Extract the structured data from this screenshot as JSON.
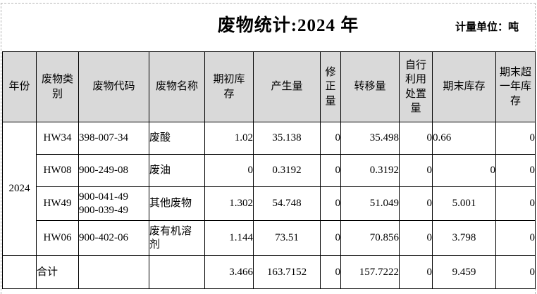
{
  "page": {
    "title": "废物统计:2024 年",
    "unit_label": "计量单位：吨"
  },
  "table": {
    "columns": [
      {
        "key": "year",
        "label": "年份"
      },
      {
        "key": "category",
        "label": "废物类\n别"
      },
      {
        "key": "code",
        "label": "废物代码"
      },
      {
        "key": "name",
        "label": "废物名称"
      },
      {
        "key": "opening",
        "label": "期初库\n存"
      },
      {
        "key": "generated",
        "label": "产生量"
      },
      {
        "key": "corrected",
        "label": "修\n正\n量"
      },
      {
        "key": "transferred",
        "label": "转移量"
      },
      {
        "key": "self_disposed",
        "label": "自行\n利用\n处置\n量"
      },
      {
        "key": "closing",
        "label": "期末库存"
      },
      {
        "key": "closing_over_year",
        "label": "期末超\n一年库\n存"
      }
    ],
    "year": "2024",
    "rows": [
      {
        "category": "HW34",
        "code": "398-007-34",
        "name": "废酸",
        "opening": "1.02",
        "generated": "35.138",
        "corrected": "0",
        "transferred": "35.498",
        "self_disposed": "0",
        "closing": "0.66",
        "closing_align": "left",
        "closing_over_year": "0"
      },
      {
        "category": "HW08",
        "code": "900-249-08",
        "name": "废油",
        "opening": "0",
        "generated": "0.3192",
        "corrected": "0",
        "transferred": "0.3192",
        "self_disposed": "0",
        "closing": "0",
        "closing_align": "right",
        "closing_over_year": "0"
      },
      {
        "category": "HW49",
        "code": "900-041-49\n900-039-49",
        "name": "其他废物",
        "opening": "1.302",
        "generated": "54.748",
        "corrected": "0",
        "transferred": "51.049",
        "self_disposed": "0",
        "closing": "5.001",
        "closing_align": "center",
        "closing_over_year": "0"
      },
      {
        "category": "HW06",
        "code": "900-402-06",
        "name": "废有机溶\n剂",
        "opening": "1.144",
        "generated": "73.51",
        "corrected": "0",
        "transferred": "70.856",
        "self_disposed": "0",
        "closing": "3.798",
        "closing_align": "center",
        "closing_over_year": "0"
      }
    ],
    "total": {
      "label": "合计",
      "opening": "3.466",
      "generated": "163.7152",
      "corrected": "0",
      "transferred": "157.7222",
      "self_disposed": "0",
      "closing": "9.459",
      "closing_align": "center",
      "closing_over_year": "0"
    }
  }
}
